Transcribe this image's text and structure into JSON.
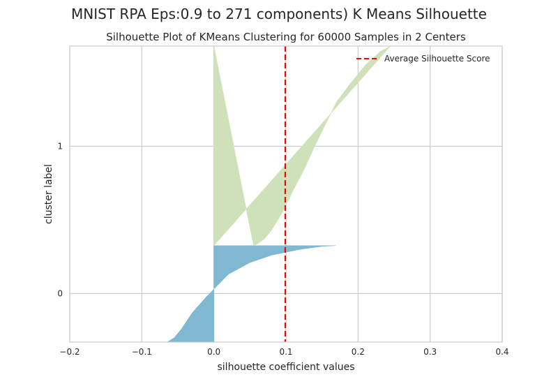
{
  "figure": {
    "suptitle": "MNIST RPA Eps:0.9 to 271 components) K Means Silhouette"
  },
  "chart_data": {
    "type": "area",
    "title": "Silhouette Plot of KMeans Clustering for 60000 Samples in 2 Centers",
    "xlabel": "silhouette coefficient values",
    "ylabel": "cluster label",
    "xlim": [
      -0.2,
      0.4
    ],
    "ylim": [
      -0.33,
      1.68
    ],
    "x_ticks": [
      -0.2,
      -0.1,
      0.0,
      0.1,
      0.2,
      0.3,
      0.4
    ],
    "x_tick_labels": [
      "−0.2",
      "−0.1",
      "0.0",
      "0.1",
      "0.2",
      "0.3",
      "0.4"
    ],
    "y_ticks": [
      0,
      1
    ],
    "y_tick_labels": [
      "0",
      "1"
    ],
    "grid": true,
    "legend": {
      "position": "top-right",
      "entries": [
        "Average Silhouette Score"
      ]
    },
    "average_silhouette_score": 0.099,
    "clusters": [
      {
        "label": "0",
        "color": "#7fb8d0",
        "band": [
          -0.33,
          0.325
        ],
        "profile": [
          [
            0.169,
            0.325
          ],
          [
            0.15,
            0.32
          ],
          [
            0.12,
            0.3
          ],
          [
            0.08,
            0.26
          ],
          [
            0.05,
            0.21
          ],
          [
            0.02,
            0.13
          ],
          [
            0.0,
            0.03
          ],
          [
            -0.01,
            -0.02
          ],
          [
            -0.03,
            -0.13
          ],
          [
            -0.045,
            -0.24
          ],
          [
            -0.055,
            -0.3
          ],
          [
            -0.065,
            -0.33
          ]
        ]
      },
      {
        "label": "1",
        "color": "#cfe1b9",
        "band": [
          0.325,
          1.68
        ],
        "profile": [
          [
            0.055,
            0.325
          ],
          [
            0.06,
            0.335
          ],
          [
            0.07,
            0.37
          ],
          [
            0.08,
            0.43
          ],
          [
            0.095,
            0.55
          ],
          [
            0.11,
            0.7
          ],
          [
            0.125,
            0.84
          ],
          [
            0.14,
            1.0
          ],
          [
            0.155,
            1.15
          ],
          [
            0.17,
            1.3
          ],
          [
            0.19,
            1.43
          ],
          [
            0.21,
            1.55
          ],
          [
            0.23,
            1.64
          ],
          [
            0.245,
            1.68
          ]
        ]
      }
    ]
  }
}
